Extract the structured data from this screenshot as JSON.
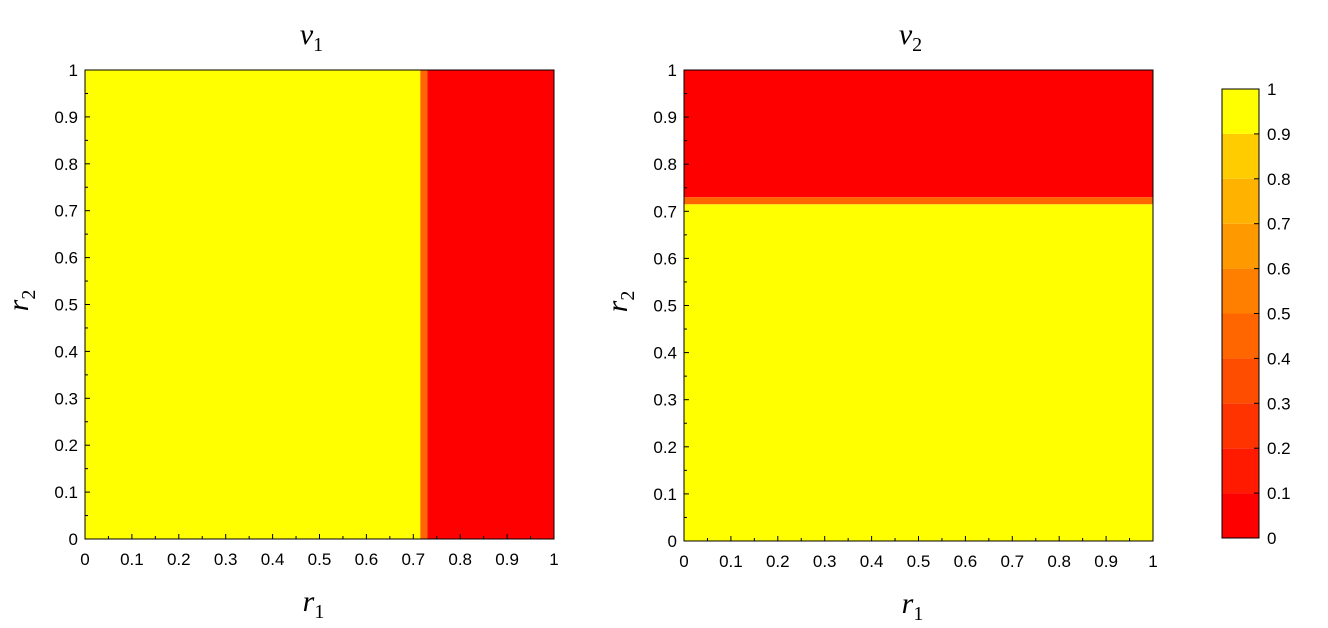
{
  "chart_data": [
    {
      "type": "heatmap",
      "title": "v",
      "title_sub": "1",
      "xlabel": "r",
      "xlabel_sub": "1",
      "ylabel": "r",
      "ylabel_sub": "2",
      "xlim": [
        0,
        1
      ],
      "ylim": [
        0,
        1
      ],
      "xticks": [
        "0",
        "0.1",
        "0.2",
        "0.3",
        "0.4",
        "0.5",
        "0.6",
        "0.7",
        "0.8",
        "0.9",
        "1"
      ],
      "yticks": [
        "0",
        "0.1",
        "0.2",
        "0.3",
        "0.4",
        "0.5",
        "0.6",
        "0.7",
        "0.8",
        "0.9",
        "1"
      ],
      "regions": [
        {
          "axis": "x",
          "from": 0,
          "to": 0.715,
          "value": 1
        },
        {
          "axis": "x",
          "from": 0.715,
          "to": 0.73,
          "value": 0.5
        },
        {
          "axis": "x",
          "from": 0.73,
          "to": 1,
          "value": 0
        }
      ]
    },
    {
      "type": "heatmap",
      "title": "v",
      "title_sub": "2",
      "xlabel": "r",
      "xlabel_sub": "1",
      "ylabel": "r",
      "ylabel_sub": "2",
      "xlim": [
        0,
        1
      ],
      "ylim": [
        0,
        1
      ],
      "xticks": [
        "0",
        "0.1",
        "0.2",
        "0.3",
        "0.4",
        "0.5",
        "0.6",
        "0.7",
        "0.8",
        "0.9",
        "1"
      ],
      "yticks": [
        "0",
        "0.1",
        "0.2",
        "0.3",
        "0.4",
        "0.5",
        "0.6",
        "0.7",
        "0.8",
        "0.9",
        "1"
      ],
      "regions": [
        {
          "axis": "y",
          "from": 0,
          "to": 0.715,
          "value": 1
        },
        {
          "axis": "y",
          "from": 0.715,
          "to": 0.73,
          "value": 0.5
        },
        {
          "axis": "y",
          "from": 0.73,
          "to": 1,
          "value": 0
        }
      ]
    }
  ],
  "colorbar": {
    "range": [
      0,
      1
    ],
    "ticks": [
      "0",
      "0.1",
      "0.2",
      "0.3",
      "0.4",
      "0.5",
      "0.6",
      "0.7",
      "0.8",
      "0.9",
      "1"
    ],
    "bands": [
      {
        "from": 0.0,
        "to": 0.1,
        "color": "#ff0000"
      },
      {
        "from": 0.1,
        "to": 0.2,
        "color": "#ff1a00"
      },
      {
        "from": 0.2,
        "to": 0.3,
        "color": "#ff3300"
      },
      {
        "from": 0.3,
        "to": 0.4,
        "color": "#ff4d00"
      },
      {
        "from": 0.4,
        "to": 0.5,
        "color": "#ff6600"
      },
      {
        "from": 0.5,
        "to": 0.6,
        "color": "#ff8000"
      },
      {
        "from": 0.6,
        "to": 0.7,
        "color": "#ff9900"
      },
      {
        "from": 0.7,
        "to": 0.8,
        "color": "#ffb300"
      },
      {
        "from": 0.8,
        "to": 0.9,
        "color": "#ffcc00"
      },
      {
        "from": 0.9,
        "to": 1.0,
        "color": "#ffff00"
      }
    ]
  },
  "colors": {
    "low": "#ff0000",
    "mid": "#ff8000",
    "high": "#ffff00"
  }
}
